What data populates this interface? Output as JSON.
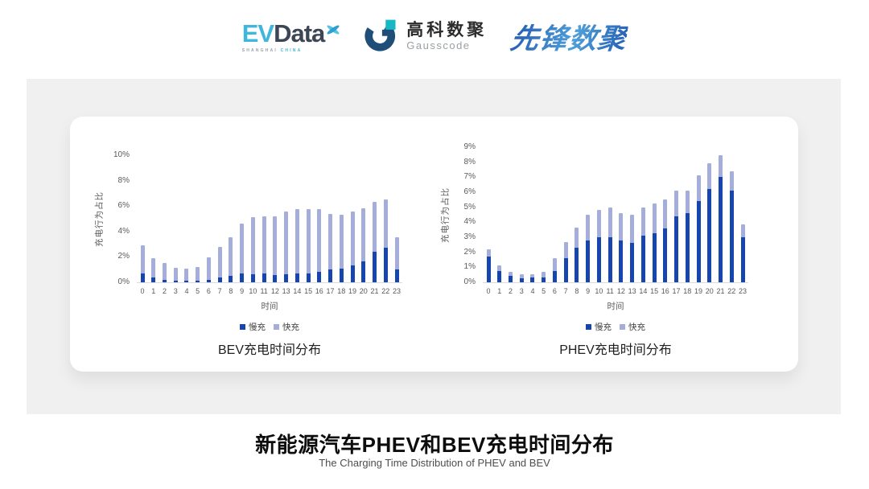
{
  "header": {
    "logos": {
      "evdata": {
        "ev": "EV",
        "data": "Data",
        "sub_left": "SHANGHAI",
        "sub_right": "CHINA"
      },
      "gausscode": {
        "cn": "高科数聚",
        "en": "Gausscode"
      },
      "xianfeng": {
        "text": "先锋数聚"
      }
    }
  },
  "colors": {
    "slow_charge": "#1745ae",
    "fast_charge": "#a5aeda",
    "panel_bg": "#f0f0f0",
    "axis_text": "#595959",
    "brand_cyan": "#3fb6dc",
    "brand_dark": "#3d4654",
    "gausscode_navy": "#1f4e79",
    "gausscode_teal": "#17b8c6"
  },
  "chart_data": [
    {
      "type": "bar",
      "stacked": true,
      "title": "BEV充电时间分布",
      "xlabel": "时间",
      "ylabel": "充电行为占比",
      "ylim": [
        0,
        10
      ],
      "ytick_step": 2,
      "ytick_suffix": "%",
      "grid": false,
      "legend_position": "bottom",
      "categories": [
        "0",
        "1",
        "2",
        "3",
        "4",
        "5",
        "6",
        "7",
        "8",
        "9",
        "10",
        "11",
        "12",
        "13",
        "14",
        "15",
        "16",
        "17",
        "18",
        "19",
        "20",
        "21",
        "22",
        "23"
      ],
      "series": [
        {
          "name": "慢充",
          "color": "#1745ae",
          "values": [
            0.7,
            0.4,
            0.2,
            0.15,
            0.1,
            0.1,
            0.2,
            0.4,
            0.5,
            0.7,
            0.65,
            0.7,
            0.6,
            0.65,
            0.7,
            0.7,
            0.85,
            1.0,
            1.1,
            1.35,
            1.65,
            2.4,
            2.75,
            1.0
          ]
        },
        {
          "name": "快充",
          "color": "#a5aeda",
          "values": [
            2.2,
            1.5,
            1.3,
            1.0,
            1.0,
            1.1,
            1.75,
            2.4,
            3.05,
            3.9,
            4.5,
            4.5,
            4.6,
            4.9,
            5.05,
            5.05,
            4.9,
            4.4,
            4.2,
            4.2,
            4.2,
            3.95,
            3.75,
            2.55
          ]
        }
      ]
    },
    {
      "type": "bar",
      "stacked": true,
      "title": "PHEV充电时间分布",
      "xlabel": "时间",
      "ylabel": "充电行为占比",
      "ylim": [
        0,
        9
      ],
      "ytick_step": 1,
      "ytick_suffix": "%",
      "grid": false,
      "legend_position": "bottom",
      "categories": [
        "0",
        "1",
        "2",
        "3",
        "4",
        "5",
        "6",
        "7",
        "8",
        "9",
        "10",
        "11",
        "12",
        "13",
        "14",
        "15",
        "16",
        "17",
        "18",
        "19",
        "20",
        "21",
        "22",
        "23"
      ],
      "series": [
        {
          "name": "慢充",
          "color": "#1745ae",
          "values": [
            1.7,
            0.75,
            0.45,
            0.25,
            0.3,
            0.3,
            0.75,
            1.6,
            2.3,
            2.8,
            3.0,
            3.0,
            2.8,
            2.65,
            3.1,
            3.25,
            3.6,
            4.4,
            4.6,
            5.4,
            6.2,
            7.0,
            6.1,
            3.0
          ]
        },
        {
          "name": "快充",
          "color": "#a5aeda",
          "values": [
            0.5,
            0.4,
            0.25,
            0.3,
            0.25,
            0.4,
            0.85,
            1.1,
            1.35,
            1.7,
            1.8,
            2.0,
            1.8,
            1.85,
            1.9,
            2.0,
            1.9,
            1.7,
            1.5,
            1.7,
            1.75,
            1.45,
            1.3,
            0.85
          ]
        }
      ]
    }
  ],
  "footer": {
    "title": "新能源汽车PHEV和BEV充电时间分布",
    "subtitle": "The Charging Time Distribution of PHEV and BEV"
  }
}
